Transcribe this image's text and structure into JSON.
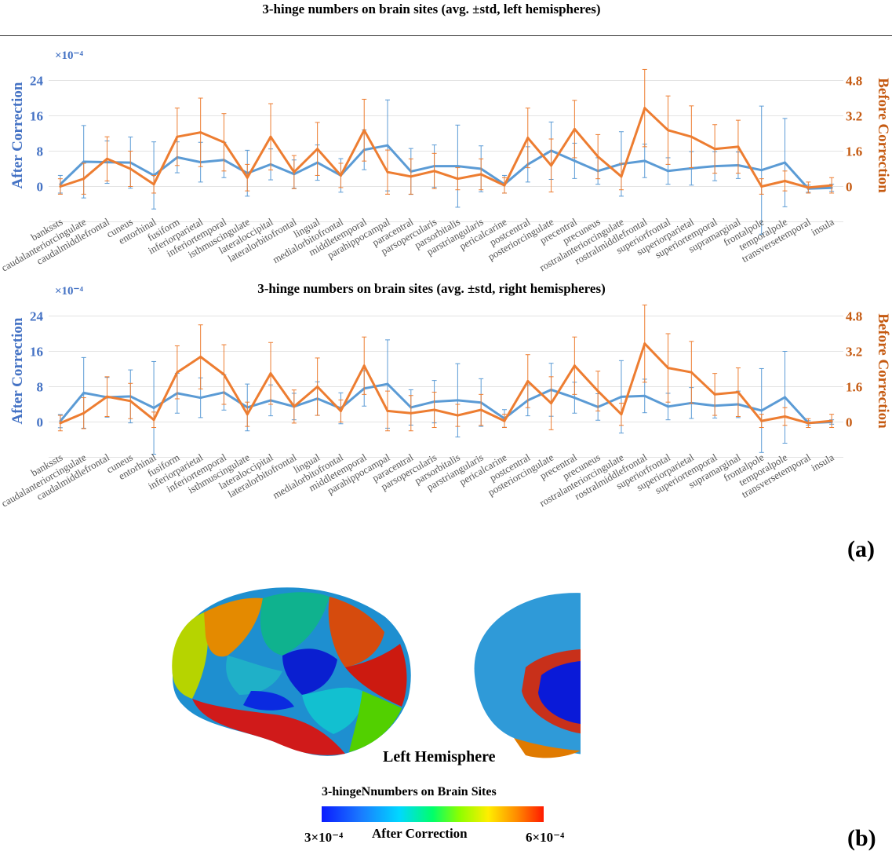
{
  "figure": {
    "label_a": "(a)",
    "label_b": "(b)",
    "hemisphere_label": "Left Hemisphere",
    "colorbar": {
      "title": "3-hingeNnumbers on Brain Sites",
      "min_label": "3×10⁻⁴",
      "mid_label": "After Correction",
      "max_label": "6×10⁻⁴"
    }
  },
  "chart_data": [
    {
      "type": "line",
      "title": "3-hinge numbers on brain sites (avg. ±std, left hemispheres)",
      "ylabel_left": "After Correction",
      "ylabel_right": "Before Correction",
      "multiplier_label": "×10⁻⁴",
      "y_left_ticks": [
        "0",
        "8",
        "16",
        "24"
      ],
      "y_left_lim": [
        -12,
        28
      ],
      "y_right_ticks": [
        "0",
        "1.6",
        "3.2",
        "4.8"
      ],
      "y_right_lim": [
        -2.4,
        5.6
      ],
      "colors": {
        "after": "#5b9bd5",
        "before": "#ed7d31",
        "axis_left": "#4472c4",
        "axis_right": "#c55a11"
      },
      "categories": [
        "bankssts",
        "caudalanteriorcingulate",
        "caudalmiddlefrontal",
        "cuneus",
        "entorhinal",
        "fusiform",
        "inferiorparietal",
        "inferiortemporal",
        "isthmuscingulate",
        "lateraloccipital",
        "lateralorbitofrontal",
        "lingual",
        "medialorbitofrontal",
        "middletemporal",
        "parahippocampal",
        "paracentral",
        "parsopercularis",
        "parsorbitalis",
        "parstriangularis",
        "pericalcarine",
        "postcentral",
        "posteriorcingulate",
        "precentral",
        "precuneus",
        "rostralanteriorcingulate",
        "rostralmiddlefrontal",
        "superiorfrontal",
        "superiorparietal",
        "superiortemporal",
        "supramarginal",
        "frontalpole",
        "temporalpole",
        "transversetemporal",
        "insula"
      ],
      "series": [
        {
          "name": "After Correction",
          "axis": "left",
          "values": [
            0.5,
            5.6,
            5.5,
            5.4,
            2.5,
            6.6,
            5.5,
            6.0,
            3.0,
            5.0,
            2.8,
            5.4,
            2.5,
            8.3,
            9.3,
            3.4,
            4.6,
            4.6,
            4.0,
            0.5,
            5.0,
            8.1,
            5.8,
            3.5,
            5.1,
            5.8,
            3.5,
            4.1,
            4.6,
            4.8,
            3.7,
            5.4,
            -0.5,
            -0.3
          ],
          "errors": [
            2.0,
            8.2,
            4.8,
            5.8,
            7.6,
            3.5,
            4.5,
            4.0,
            5.2,
            3.5,
            3.2,
            4.0,
            3.8,
            4.5,
            10.3,
            5.2,
            4.8,
            9.3,
            5.2,
            2.0,
            4.0,
            6.5,
            4.0,
            3.0,
            7.3,
            3.8,
            3.0,
            3.8,
            3.3,
            3.0,
            14.5,
            10.0,
            0.8,
            0.8
          ]
        },
        {
          "name": "Before Correction",
          "axis": "right",
          "values": [
            0.0,
            0.35,
            1.25,
            0.8,
            0.1,
            2.25,
            2.45,
            2.0,
            0.4,
            2.25,
            0.65,
            1.7,
            0.5,
            2.55,
            0.65,
            0.45,
            0.7,
            0.35,
            0.55,
            0.05,
            2.2,
            0.95,
            2.6,
            1.35,
            0.45,
            3.55,
            2.55,
            2.25,
            1.7,
            1.8,
            0.0,
            0.25,
            -0.05,
            0.05
          ],
          "errors": [
            0.35,
            0.7,
            1.0,
            0.8,
            0.4,
            1.3,
            1.55,
            1.3,
            0.6,
            1.5,
            0.75,
            1.2,
            0.55,
            1.4,
            1.0,
            0.8,
            0.8,
            0.5,
            0.7,
            0.35,
            1.35,
            1.2,
            1.3,
            1.0,
            0.6,
            1.75,
            1.55,
            1.4,
            1.1,
            1.2,
            0.35,
            0.45,
            0.25,
            0.35
          ]
        }
      ]
    },
    {
      "type": "line",
      "title": "3-hinge numbers on brain sites (avg. ±std, right hemispheres)",
      "ylabel_left": "After Correction",
      "ylabel_right": "Before Correction",
      "multiplier_label": "×10⁻⁴",
      "y_left_ticks": [
        "0",
        "8",
        "16",
        "24"
      ],
      "y_left_lim": [
        -12,
        28
      ],
      "y_right_ticks": [
        "0",
        "1.6",
        "3.2",
        "4.8"
      ],
      "y_right_lim": [
        -2.4,
        5.6
      ],
      "colors": {
        "after": "#5b9bd5",
        "before": "#ed7d31",
        "axis_left": "#4472c4",
        "axis_right": "#c55a11"
      },
      "categories": [
        "bankssts",
        "caudalanteriorcingulate",
        "caudalmiddlefrontal",
        "cuneus",
        "entorhinal",
        "fusiform",
        "inferiorparietal",
        "inferiortemporal",
        "isthmuscingulate",
        "lateraloccipital",
        "lateralorbitofrontal",
        "lingual",
        "medialorbitofrontal",
        "middletemporal",
        "parahippocampal",
        "paracentral",
        "parsopercularis",
        "parsorbitalis",
        "parstriangularis",
        "pericalcarine",
        "postcentral",
        "posteriorcingulate",
        "precentral",
        "precuneus",
        "rostralanteriorcingulate",
        "rostralmiddlefrontal",
        "superiorfrontal",
        "superiorparietal",
        "superiortemporal",
        "supramarginal",
        "frontalpole",
        "temporalpole",
        "transversetemporal",
        "insula"
      ],
      "series": [
        {
          "name": "After Correction",
          "axis": "left",
          "values": [
            0.2,
            6.6,
            5.6,
            5.8,
            3.2,
            6.5,
            5.5,
            6.7,
            3.3,
            4.9,
            3.5,
            5.3,
            3.1,
            7.6,
            8.6,
            3.3,
            4.6,
            4.9,
            4.4,
            0.8,
            4.9,
            7.3,
            5.5,
            3.4,
            5.7,
            5.9,
            3.5,
            4.3,
            3.7,
            4.0,
            2.6,
            5.6,
            -0.2,
            0.0
          ],
          "errors": [
            1.5,
            8.0,
            4.5,
            6.0,
            10.5,
            4.5,
            4.5,
            4.0,
            5.3,
            3.5,
            3.0,
            3.8,
            3.5,
            4.0,
            10.0,
            4.0,
            4.8,
            8.3,
            5.4,
            2.0,
            3.5,
            6.0,
            3.5,
            3.0,
            8.2,
            3.8,
            3.0,
            3.5,
            2.8,
            3.0,
            9.5,
            10.4,
            0.5,
            0.5
          ]
        },
        {
          "name": "Before Correction",
          "axis": "right",
          "values": [
            -0.05,
            0.4,
            1.15,
            0.95,
            0.1,
            2.25,
            2.95,
            2.15,
            0.35,
            2.2,
            0.7,
            1.6,
            0.5,
            2.55,
            0.5,
            0.4,
            0.55,
            0.3,
            0.55,
            0.05,
            1.85,
            0.85,
            2.55,
            1.4,
            0.35,
            3.55,
            2.45,
            2.25,
            1.25,
            1.35,
            0.05,
            0.25,
            -0.05,
            0.05
          ],
          "errors": [
            0.35,
            0.7,
            0.9,
            0.8,
            0.35,
            1.2,
            1.45,
            1.35,
            0.55,
            1.4,
            0.75,
            1.3,
            0.5,
            1.3,
            0.9,
            0.8,
            0.8,
            0.5,
            0.7,
            0.3,
            1.2,
            1.2,
            1.3,
            0.9,
            0.5,
            1.75,
            1.55,
            1.4,
            0.95,
            1.1,
            0.3,
            0.4,
            0.2,
            0.3
          ]
        }
      ]
    }
  ]
}
